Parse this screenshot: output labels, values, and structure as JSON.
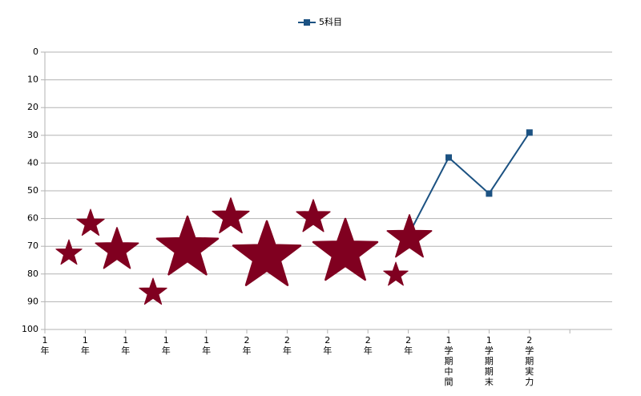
{
  "chart_data": {
    "type": "line",
    "categories": [
      "1年",
      "1年",
      "1年",
      "1年",
      "1年",
      "2年",
      "2年",
      "2年",
      "2年",
      "2年",
      "1学期中間",
      "1学期期末",
      "2学期実力",
      null
    ],
    "series": [
      {
        "name": "5科目",
        "color": "#1c5282",
        "values": [
          null,
          null,
          null,
          null,
          null,
          null,
          null,
          null,
          null,
          66,
          38,
          51,
          29,
          null
        ]
      }
    ],
    "ylim": [
      0,
      100
    ],
    "y_inverted": true,
    "yticks": [
      0,
      10,
      20,
      30,
      40,
      50,
      60,
      70,
      80,
      90,
      100
    ],
    "grid": true,
    "legend": "top"
  }
}
